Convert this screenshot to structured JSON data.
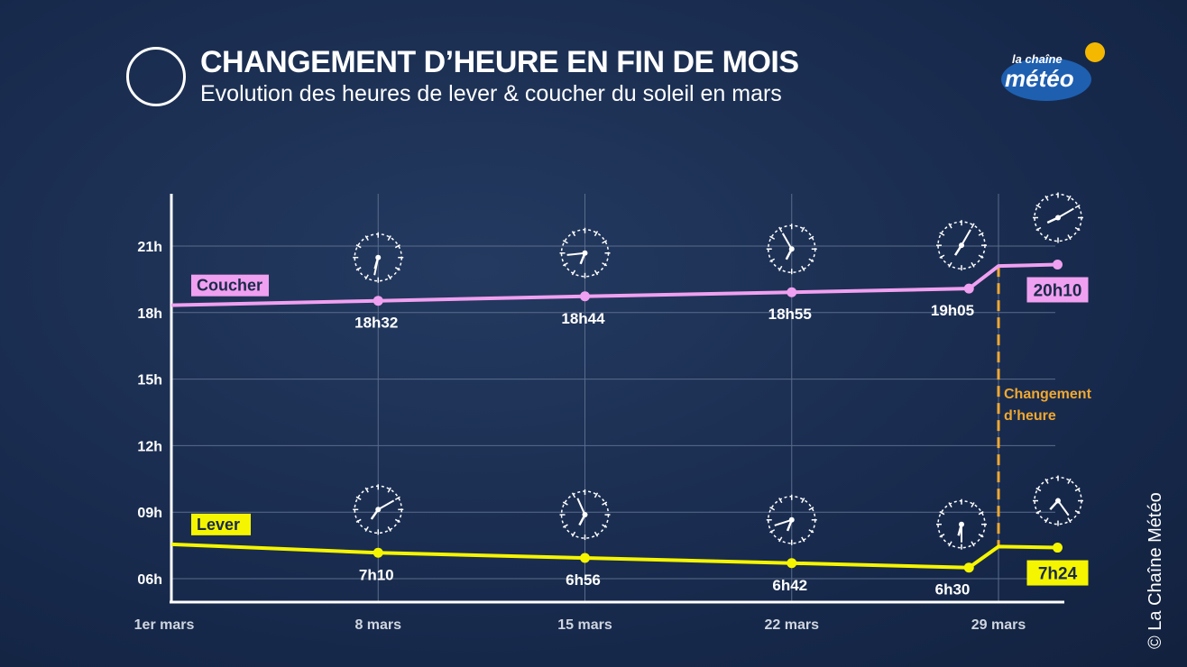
{
  "header": {
    "title": "CHANGEMENT D’HEURE EN FIN DE MOIS",
    "subtitle": "Evolution des heures de lever & coucher du soleil en mars",
    "logo_text": "la chaîne météo"
  },
  "copyright": "© La Chaîne Météo",
  "chart_data": {
    "type": "line",
    "title": "CHANGEMENT D’HEURE EN FIN DE MOIS",
    "subtitle": "Evolution des heures de lever & coucher du soleil en mars",
    "x_ticks": [
      {
        "day": 1,
        "label": "1er mars"
      },
      {
        "day": 8,
        "label": "8 mars"
      },
      {
        "day": 15,
        "label": "15 mars"
      },
      {
        "day": 22,
        "label": "22 mars"
      },
      {
        "day": 29,
        "label": "29 mars"
      }
    ],
    "y_ticks": [
      {
        "hour": 6,
        "label": "06h"
      },
      {
        "hour": 9,
        "label": "09h"
      },
      {
        "hour": 12,
        "label": "12h"
      },
      {
        "hour": 15,
        "label": "15h"
      },
      {
        "hour": 18,
        "label": "18h"
      },
      {
        "hour": 21,
        "label": "21h"
      }
    ],
    "xlim": [
      1,
      31
    ],
    "ylim": [
      5,
      23
    ],
    "grid": true,
    "series": [
      {
        "name": "Coucher",
        "color": "#f0a0f0",
        "points": [
          [
            1,
            18.33
          ],
          [
            8,
            18.533
          ],
          [
            15,
            18.733
          ],
          [
            22,
            18.917
          ],
          [
            28,
            19.083
          ],
          [
            29,
            20.1
          ],
          [
            31,
            20.167
          ]
        ],
        "labels": [
          {
            "day": 8,
            "text": "18h32"
          },
          {
            "day": 15,
            "text": "18h44"
          },
          {
            "day": 22,
            "text": "18h55"
          },
          {
            "day": 28,
            "text": "19h05"
          },
          {
            "day": 31,
            "text": "20h10",
            "boxed": true
          }
        ]
      },
      {
        "name": "Lever",
        "color": "#f5f500",
        "points": [
          [
            1,
            7.55
          ],
          [
            8,
            7.167
          ],
          [
            15,
            6.933
          ],
          [
            22,
            6.7
          ],
          [
            28,
            6.5
          ],
          [
            29,
            7.45
          ],
          [
            31,
            7.4
          ]
        ],
        "labels": [
          {
            "day": 8,
            "text": "7h10"
          },
          {
            "day": 15,
            "text": "6h56"
          },
          {
            "day": 22,
            "text": "6h42"
          },
          {
            "day": 28,
            "text": "6h30"
          },
          {
            "day": 31,
            "text": "7h24",
            "boxed": true
          }
        ]
      }
    ],
    "annotation": {
      "day": 29,
      "text": [
        "Changement",
        "d’heure"
      ],
      "color": "#f0a830"
    }
  }
}
